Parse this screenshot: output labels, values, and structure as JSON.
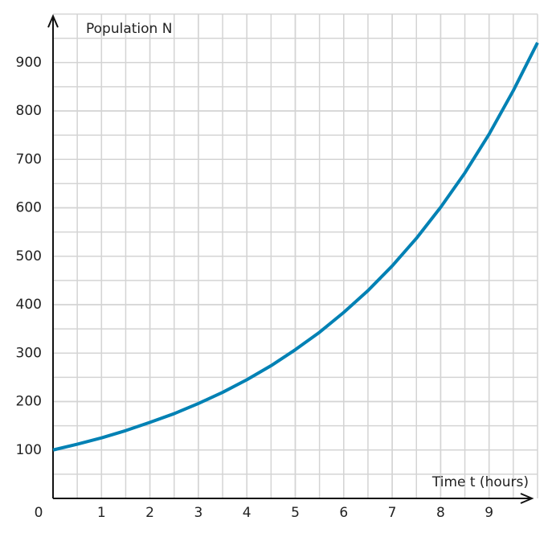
{
  "chart_data": {
    "type": "line",
    "x_label": "Time t (hours)",
    "y_label": "Population N",
    "x": [
      0,
      0.5,
      1,
      1.5,
      2,
      2.5,
      3,
      3.5,
      4,
      4.5,
      5,
      5.5,
      6,
      6.5,
      7,
      7.5,
      8,
      8.5,
      9,
      9.5,
      10
    ],
    "values": [
      100,
      112,
      125,
      140,
      157,
      175,
      196,
      219,
      245,
      274,
      307,
      343,
      384,
      429,
      480,
      537,
      601,
      672,
      752,
      842,
      941
    ],
    "color": "#0081b4",
    "xlim": [
      0,
      10
    ],
    "ylim": [
      0,
      1000
    ],
    "xticks": [
      0,
      1,
      2,
      3,
      4,
      5,
      6,
      7,
      8,
      9
    ],
    "yticks": [
      100,
      200,
      300,
      400,
      500,
      600,
      700,
      800,
      900
    ],
    "grid": true
  }
}
